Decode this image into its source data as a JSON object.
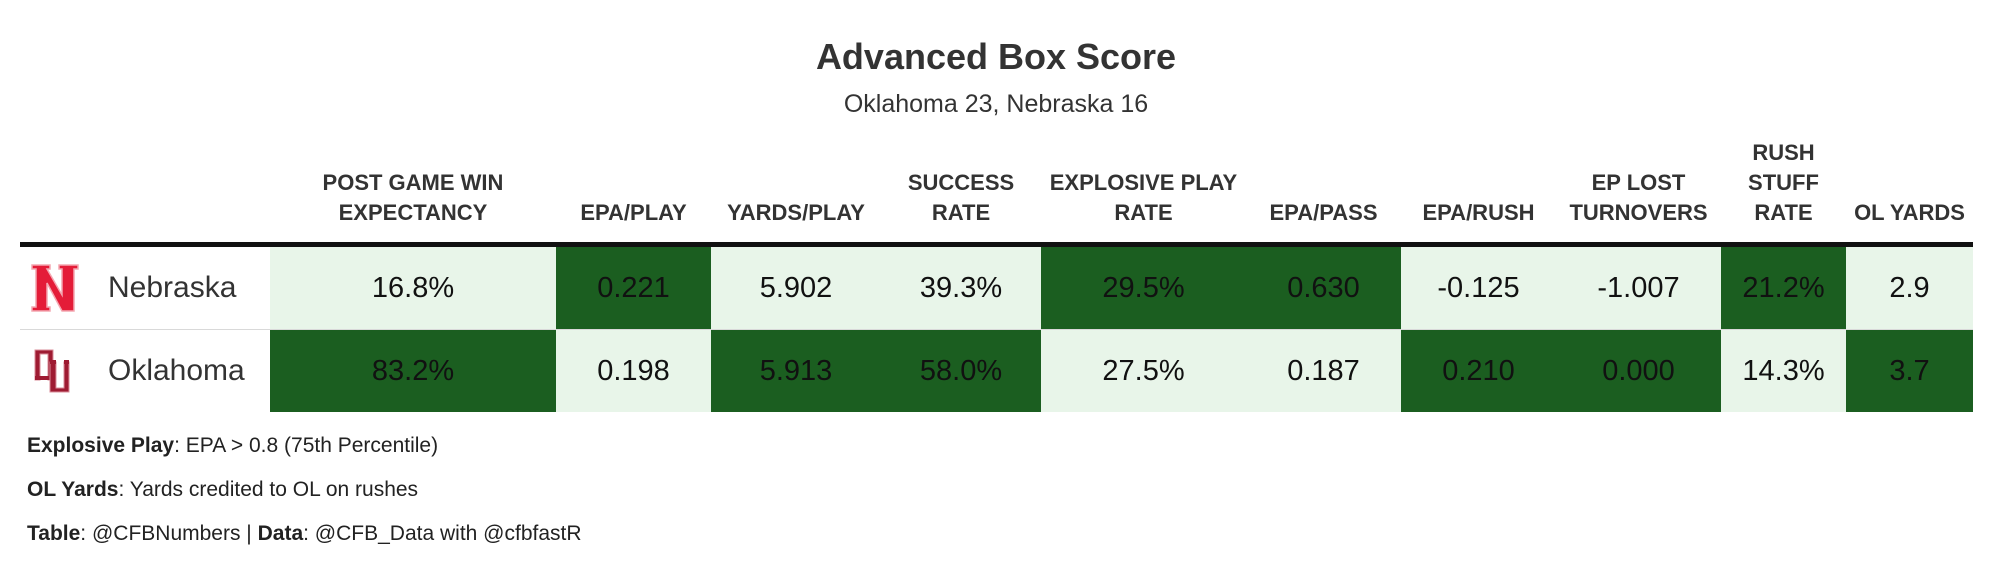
{
  "title": "Advanced Box Score",
  "subtitle": "Oklahoma 23, Nebraska 16",
  "chart_data": {
    "type": "table",
    "columns": [
      {
        "key": "team",
        "label": ""
      },
      {
        "key": "pgwe",
        "label": "POST GAME WIN EXPECTANCY"
      },
      {
        "key": "epa_play",
        "label": "EPA/PLAY"
      },
      {
        "key": "yards_play",
        "label": "YARDS/PLAY"
      },
      {
        "key": "success",
        "label": "SUCCESS RATE"
      },
      {
        "key": "explosive",
        "label": "EXPLOSIVE PLAY RATE"
      },
      {
        "key": "epa_pass",
        "label": "EPA/PASS"
      },
      {
        "key": "epa_rush",
        "label": "EPA/RUSH"
      },
      {
        "key": "ep_lost",
        "label": "EP LOST TURNOVERS"
      },
      {
        "key": "stuff",
        "label": "RUSH STUFF RATE"
      },
      {
        "key": "ol_yards",
        "label": "OL YARDS"
      }
    ],
    "rows": [
      {
        "team": "Nebraska",
        "logo": "nebraska-n-logo",
        "cells": [
          {
            "value": "16.8%",
            "highlight": false
          },
          {
            "value": "0.221",
            "highlight": true
          },
          {
            "value": "5.902",
            "highlight": false
          },
          {
            "value": "39.3%",
            "highlight": false
          },
          {
            "value": "29.5%",
            "highlight": true
          },
          {
            "value": "0.630",
            "highlight": true
          },
          {
            "value": "-0.125",
            "highlight": false
          },
          {
            "value": "-1.007",
            "highlight": false
          },
          {
            "value": "21.2%",
            "highlight": true
          },
          {
            "value": "2.9",
            "highlight": false
          }
        ]
      },
      {
        "team": "Oklahoma",
        "logo": "oklahoma-ou-logo",
        "cells": [
          {
            "value": "83.2%",
            "highlight": true
          },
          {
            "value": "0.198",
            "highlight": false
          },
          {
            "value": "5.913",
            "highlight": true
          },
          {
            "value": "58.0%",
            "highlight": true
          },
          {
            "value": "27.5%",
            "highlight": false
          },
          {
            "value": "0.187",
            "highlight": false
          },
          {
            "value": "0.210",
            "highlight": true
          },
          {
            "value": "0.000",
            "highlight": true
          },
          {
            "value": "14.3%",
            "highlight": false
          },
          {
            "value": "3.7",
            "highlight": true
          }
        ]
      }
    ],
    "colors": {
      "highlight": "#1b5e20",
      "base": "#e8f5e9",
      "header_rule": "#111111"
    }
  },
  "footnotes": [
    {
      "label": "Explosive Play",
      "text": ": EPA > 0.8 (75th Percentile)"
    },
    {
      "label": "OL Yards",
      "text": ": Yards credited to OL on rushes"
    },
    {
      "label": "Table",
      "text": ": @CFBNumbers | ",
      "label2": "Data",
      "text2": ": @CFB_Data with @cfbfastR"
    }
  ]
}
